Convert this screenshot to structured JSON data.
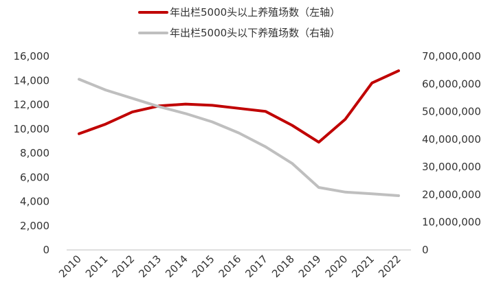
{
  "chart_data": {
    "type": "line",
    "title": "",
    "categories": [
      "2010",
      "2011",
      "2012",
      "2013",
      "2014",
      "2015",
      "2016",
      "2017",
      "2018",
      "2019",
      "2020",
      "2021",
      "2022"
    ],
    "series": [
      {
        "name": "年出栏5000头以上养殖场数（左轴）",
        "axis": "left",
        "color": "#C00000",
        "values": [
          9600,
          10400,
          11400,
          11900,
          12050,
          11950,
          11700,
          11450,
          10300,
          8900,
          10800,
          13800,
          14800
        ]
      },
      {
        "name": "年出栏5000头以下养殖场数（右轴）",
        "axis": "right",
        "color": "#BFBFBF",
        "values": [
          61700000,
          57800000,
          54800000,
          51800000,
          49300000,
          46300000,
          42300000,
          37300000,
          31300000,
          22600000,
          20900000,
          20300000,
          19600000
        ]
      }
    ],
    "y_left": {
      "min": 0,
      "max": 16000,
      "ticks": [
        0,
        2000,
        4000,
        6000,
        8000,
        10000,
        12000,
        14000,
        16000
      ],
      "tick_labels": [
        "0",
        "2,000",
        "4,000",
        "6,000",
        "8,000",
        "10,000",
        "12,000",
        "14,000",
        "16,000"
      ]
    },
    "y_right": {
      "min": 0,
      "max": 70000000,
      "ticks": [
        0,
        10000000,
        20000000,
        30000000,
        40000000,
        50000000,
        60000000,
        70000000
      ],
      "tick_labels": [
        "0",
        "10,000,000",
        "20,000,000",
        "30,000,000",
        "40,000,000",
        "50,000,000",
        "60,000,000",
        "70,000,000"
      ]
    },
    "grid": false,
    "legend_position": "top-center"
  }
}
